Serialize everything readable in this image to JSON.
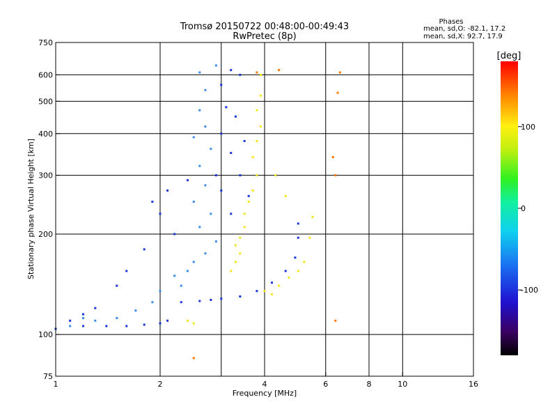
{
  "header": {
    "title": "Tromsø 20150722 00:48:00-00:49:43",
    "subtitle": "RwPretec (8p)"
  },
  "phases": {
    "heading": "Phases",
    "line_o": "mean, sd,O: -82.1, 17.2",
    "line_x": "mean, sd,X:  92.7, 17.9"
  },
  "colors": {
    "o_mode_color": "#1a35d8",
    "o_mode_lower_color": "#3a8cf0",
    "x_mode_color": "#f2e61a",
    "frame": "#000000"
  },
  "chart_data": {
    "type": "scatter",
    "xlabel": "Frequency [MHz]",
    "ylabel": "Stationary phase Virtual Height [km]",
    "x_scale": "log",
    "y_scale": "log",
    "xlim": [
      1,
      16
    ],
    "ylim": [
      75,
      750
    ],
    "x_ticks": [
      1,
      2,
      4,
      6,
      8,
      10,
      16
    ],
    "y_ticks": [
      75,
      100,
      200,
      300,
      400,
      500,
      600,
      750
    ],
    "x_gridlines": [
      2,
      3,
      4,
      6,
      8,
      10
    ],
    "y_gridlines": [
      100,
      200,
      300,
      400,
      500,
      600
    ],
    "grid": true,
    "colorbar": {
      "label": "[deg]",
      "range": [
        -180,
        180
      ],
      "ticks": [
        100,
        0,
        -100
      ],
      "colormap": "rainbow"
    },
    "series": [
      {
        "phase_deg": -100,
        "points": [
          [
            1.0,
            104
          ],
          [
            1.2,
            106
          ],
          [
            1.4,
            106
          ],
          [
            1.6,
            106
          ],
          [
            1.8,
            107
          ],
          [
            2.0,
            108
          ],
          [
            2.1,
            110
          ],
          [
            2.3,
            125
          ],
          [
            2.6,
            126
          ],
          [
            2.8,
            127
          ],
          [
            3.0,
            128
          ],
          [
            3.4,
            130
          ],
          [
            3.8,
            135
          ],
          [
            4.2,
            143
          ],
          [
            4.6,
            155
          ],
          [
            4.9,
            170
          ],
          [
            5.0,
            195
          ],
          [
            5.0,
            215
          ],
          [
            3.2,
            620
          ],
          [
            3.0,
            560
          ],
          [
            3.1,
            480
          ],
          [
            3.3,
            450
          ],
          [
            3.0,
            400
          ],
          [
            3.2,
            350
          ],
          [
            3.4,
            300
          ],
          [
            3.0,
            270
          ],
          [
            3.6,
            260
          ],
          [
            3.5,
            380
          ],
          [
            3.4,
            600
          ],
          [
            3.2,
            230
          ],
          [
            2.9,
            300
          ],
          [
            2.2,
            200
          ],
          [
            2.0,
            230
          ],
          [
            1.9,
            250
          ],
          [
            2.4,
            290
          ],
          [
            1.8,
            180
          ],
          [
            1.6,
            155
          ],
          [
            1.5,
            140
          ],
          [
            1.3,
            120
          ],
          [
            1.2,
            115
          ],
          [
            1.1,
            110
          ],
          [
            2.1,
            270
          ]
        ]
      },
      {
        "phase_deg": -60,
        "points": [
          [
            2.6,
            610
          ],
          [
            2.7,
            540
          ],
          [
            2.6,
            470
          ],
          [
            2.7,
            420
          ],
          [
            2.5,
            390
          ],
          [
            2.8,
            360
          ],
          [
            2.6,
            320
          ],
          [
            2.7,
            280
          ],
          [
            2.5,
            250
          ],
          [
            2.8,
            230
          ],
          [
            2.6,
            210
          ],
          [
            2.9,
            190
          ],
          [
            2.7,
            175
          ],
          [
            2.5,
            165
          ],
          [
            2.4,
            155
          ],
          [
            2.2,
            150
          ],
          [
            2.3,
            140
          ],
          [
            2.0,
            135
          ],
          [
            1.9,
            125
          ],
          [
            1.7,
            118
          ],
          [
            1.5,
            112
          ],
          [
            1.3,
            110
          ],
          [
            1.2,
            112
          ],
          [
            1.1,
            106
          ],
          [
            2.9,
            640
          ]
        ]
      },
      {
        "phase_deg": 100,
        "points": [
          [
            3.9,
            600
          ],
          [
            3.9,
            520
          ],
          [
            3.8,
            470
          ],
          [
            3.9,
            420
          ],
          [
            3.8,
            380
          ],
          [
            3.7,
            340
          ],
          [
            3.8,
            300
          ],
          [
            3.7,
            270
          ],
          [
            3.6,
            250
          ],
          [
            3.5,
            230
          ],
          [
            3.5,
            210
          ],
          [
            3.4,
            195
          ],
          [
            3.3,
            185
          ],
          [
            3.3,
            165
          ],
          [
            3.2,
            155
          ],
          [
            3.4,
            175
          ],
          [
            4.0,
            135
          ],
          [
            4.2,
            132
          ],
          [
            4.4,
            140
          ],
          [
            4.7,
            148
          ],
          [
            5.0,
            155
          ],
          [
            5.2,
            165
          ],
          [
            5.4,
            195
          ],
          [
            5.5,
            225
          ],
          [
            2.4,
            110
          ],
          [
            2.5,
            108
          ],
          [
            4.3,
            300
          ],
          [
            4.6,
            260
          ]
        ]
      },
      {
        "phase_deg": 150,
        "points": [
          [
            3.8,
            610
          ],
          [
            4.4,
            620
          ],
          [
            6.6,
            610
          ],
          [
            6.5,
            530
          ],
          [
            6.4,
            300
          ],
          [
            6.3,
            340
          ],
          [
            2.5,
            85
          ],
          [
            6.4,
            110
          ]
        ]
      }
    ]
  }
}
